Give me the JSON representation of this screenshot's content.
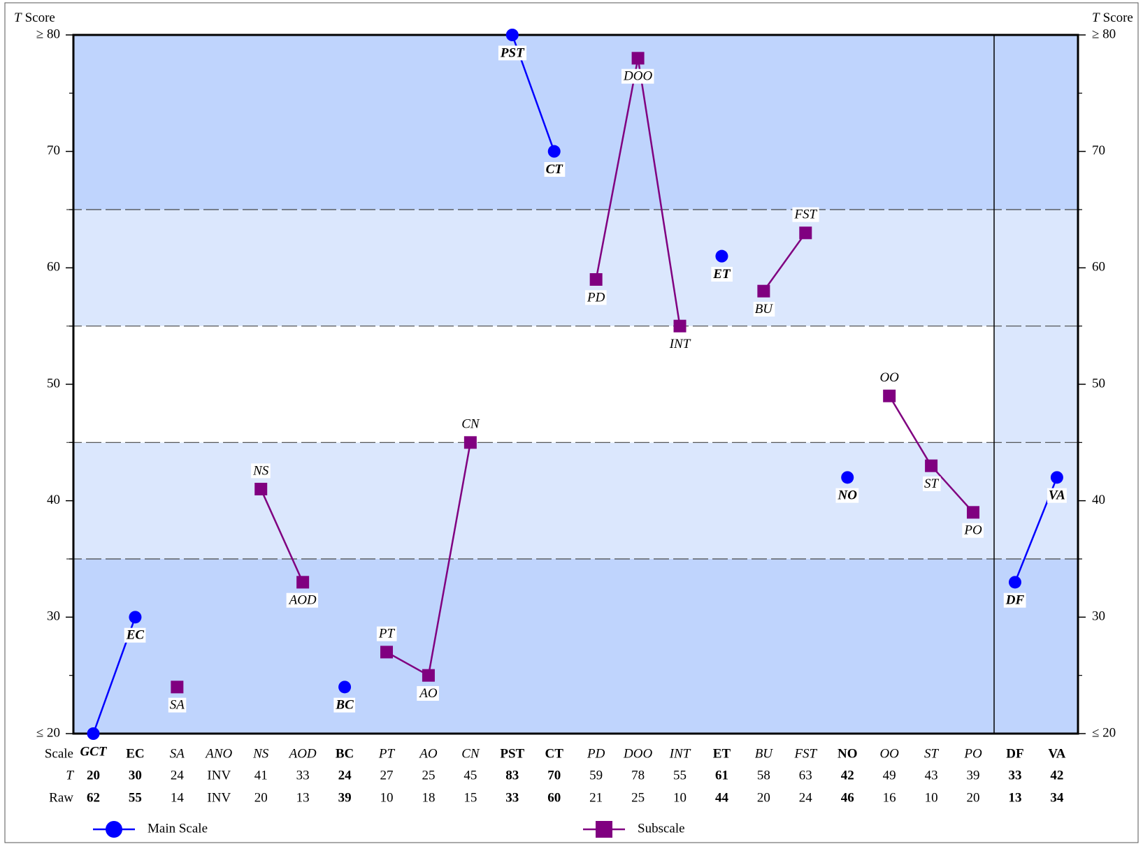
{
  "chart_data": {
    "type": "profile",
    "y_label": {
      "var": "T",
      "text": "Score"
    },
    "ylim": [
      20,
      80
    ],
    "yticks": [
      {
        "value": 20,
        "label": "≤ 20"
      },
      30,
      40,
      50,
      60,
      70,
      {
        "value": 80,
        "label": "≥ 80"
      }
    ],
    "minor_yticks": [
      25,
      35,
      45,
      55,
      65,
      75
    ],
    "reference_lines": [
      35,
      45,
      55,
      65
    ],
    "bands": [
      {
        "range": [
          20,
          35
        ],
        "color": "#bfd4fd"
      },
      {
        "range": [
          35,
          45
        ],
        "color": "#dbe7fd"
      },
      {
        "range": [
          45,
          55
        ],
        "color": "#ffffff"
      },
      {
        "range": [
          55,
          65
        ],
        "color": "#dbe7fd"
      },
      {
        "range": [
          65,
          80
        ],
        "color": "#bfd4fd"
      }
    ],
    "validity_bands": [
      {
        "range": [
          20,
          35
        ],
        "color": "#bfd4fd"
      },
      {
        "range": [
          35,
          65
        ],
        "color": "#dbe7fd"
      },
      {
        "range": [
          65,
          80
        ],
        "color": "#bfd4fd"
      }
    ],
    "divider_index": 22,
    "categories": [
      "GCT",
      "EC",
      "SA",
      "ANO",
      "NS",
      "AOD",
      "BC",
      "PT",
      "AO",
      "CN",
      "PST",
      "CT",
      "PD",
      "DOO",
      "INT",
      "ET",
      "BU",
      "FST",
      "NO",
      "OO",
      "ST",
      "PO",
      "DF",
      "VA"
    ],
    "series": [
      {
        "name": "Main Scale",
        "color": "#0000ff",
        "marker": "circle",
        "values": [
          20,
          30,
          null,
          null,
          null,
          null,
          24,
          null,
          null,
          null,
          80,
          70,
          null,
          null,
          null,
          61,
          null,
          null,
          42,
          null,
          null,
          null,
          33,
          42
        ]
      },
      {
        "name": "Subscale",
        "color": "#800080",
        "marker": "square",
        "values": [
          null,
          null,
          24,
          null,
          41,
          33,
          null,
          27,
          25,
          45,
          null,
          null,
          59,
          78,
          55,
          null,
          58,
          63,
          null,
          49,
          43,
          39,
          null,
          null
        ]
      }
    ],
    "table": {
      "row_labels": [
        "Scale",
        "T",
        "Raw"
      ],
      "t": [
        20,
        30,
        24,
        "INV",
        41,
        33,
        24,
        27,
        25,
        45,
        83,
        70,
        59,
        78,
        55,
        61,
        58,
        63,
        42,
        49,
        43,
        39,
        33,
        42
      ],
      "raw": [
        62,
        55,
        14,
        "INV",
        20,
        13,
        39,
        10,
        18,
        15,
        33,
        60,
        21,
        25,
        10,
        44,
        20,
        24,
        46,
        16,
        10,
        20,
        13,
        34
      ]
    }
  }
}
